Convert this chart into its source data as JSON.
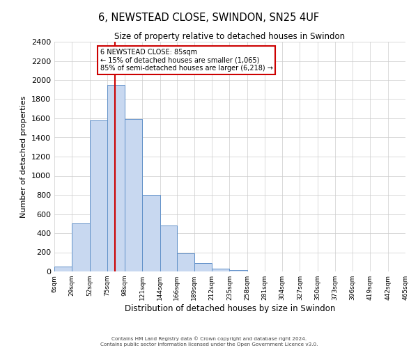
{
  "title": "6, NEWSTEAD CLOSE, SWINDON, SN25 4UF",
  "subtitle": "Size of property relative to detached houses in Swindon",
  "xlabel": "Distribution of detached houses by size in Swindon",
  "ylabel": "Number of detached properties",
  "footer_line1": "Contains HM Land Registry data © Crown copyright and database right 2024.",
  "footer_line2": "Contains public sector information licensed under the Open Government Licence v3.0.",
  "bin_labels": [
    "6sqm",
    "29sqm",
    "52sqm",
    "75sqm",
    "98sqm",
    "121sqm",
    "144sqm",
    "166sqm",
    "189sqm",
    "212sqm",
    "235sqm",
    "258sqm",
    "281sqm",
    "304sqm",
    "327sqm",
    "350sqm",
    "373sqm",
    "396sqm",
    "419sqm",
    "442sqm",
    "465sqm"
  ],
  "bar_values": [
    50,
    500,
    1580,
    1950,
    1590,
    800,
    480,
    190,
    90,
    30,
    15,
    0,
    0,
    0,
    0,
    0,
    0,
    0,
    0,
    0
  ],
  "bin_edges": [
    6,
    29,
    52,
    75,
    98,
    121,
    144,
    166,
    189,
    212,
    235,
    258,
    281,
    304,
    327,
    350,
    373,
    396,
    419,
    442,
    465
  ],
  "bar_color": "#c8d8f0",
  "bar_edge_color": "#6090c8",
  "property_value": 85,
  "vline_color": "#cc0000",
  "annotation_text_line1": "6 NEWSTEAD CLOSE: 85sqm",
  "annotation_text_line2": "← 15% of detached houses are smaller (1,065)",
  "annotation_text_line3": "85% of semi-detached houses are larger (6,218) →",
  "ylim": [
    0,
    2400
  ],
  "yticks": [
    0,
    200,
    400,
    600,
    800,
    1000,
    1200,
    1400,
    1600,
    1800,
    2000,
    2200,
    2400
  ],
  "background_color": "#ffffff",
  "grid_color": "#cccccc"
}
